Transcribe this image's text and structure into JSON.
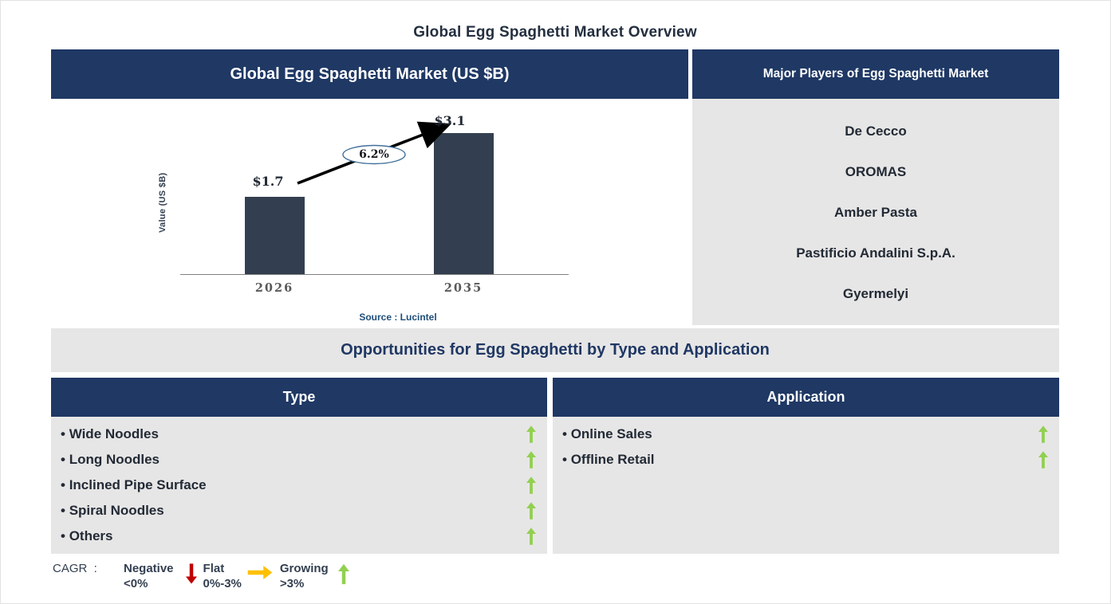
{
  "page": {
    "title": "Global Egg Spaghetti Market Overview"
  },
  "chart_panel": {
    "header": "Global Egg Spaghetti Market (US $B)"
  },
  "chart_data": {
    "type": "bar",
    "title": "Global Egg Spaghetti Market (US $B)",
    "ylabel": "Value (US $B)",
    "xlabel": "",
    "categories": [
      "2026",
      "2035"
    ],
    "values": [
      1.7,
      3.1
    ],
    "bar_labels": [
      "$1.7",
      "$3.1"
    ],
    "growth_annotation": "6.2%",
    "ylim": [
      0,
      3.5
    ],
    "grid": false,
    "bar_color": "#333F50",
    "source": "Source : Lucintel"
  },
  "players_panel": {
    "header": "Major Players of Egg Spaghetti Market",
    "players": [
      "De Cecco",
      "OROMAS",
      "Amber Pasta",
      "Pastificio Andalini S.p.A.",
      "Gyermelyi"
    ]
  },
  "opportunities": {
    "banner": "Opportunities for Egg Spaghetti by Type and Application",
    "type_column": {
      "header": "Type",
      "items": [
        {
          "label": "Wide Noodles",
          "trend": "growing"
        },
        {
          "label": "Long Noodles",
          "trend": "growing"
        },
        {
          "label": "Inclined Pipe Surface",
          "trend": "growing"
        },
        {
          "label": "Spiral Noodles",
          "trend": "growing"
        },
        {
          "label": "Others",
          "trend": "growing"
        }
      ]
    },
    "application_column": {
      "header": "Application",
      "items": [
        {
          "label": "Online Sales",
          "trend": "growing"
        },
        {
          "label": "Offline Retail",
          "trend": "growing"
        }
      ]
    }
  },
  "legend": {
    "prefix": "CAGR  :",
    "entries": [
      {
        "label": "Negative",
        "range": "<0%",
        "icon": "down-arrow",
        "color": "#C00000"
      },
      {
        "label": "Flat",
        "range": "0%-3%",
        "icon": "right-arrow",
        "color": "#FFC000"
      },
      {
        "label": "Growing",
        "range": ">3%",
        "icon": "up-arrow",
        "color": "#92D050"
      }
    ]
  },
  "colors": {
    "header_bg": "#1F3864",
    "panel_bg": "#E7E6E6",
    "bar": "#333F50",
    "title_text": "#242F40",
    "growing_green": "#92D050",
    "negative_red": "#C00000",
    "flat_yellow": "#FFC000",
    "source_blue": "#1F4E79",
    "ellipse_stroke": "#41719C"
  }
}
